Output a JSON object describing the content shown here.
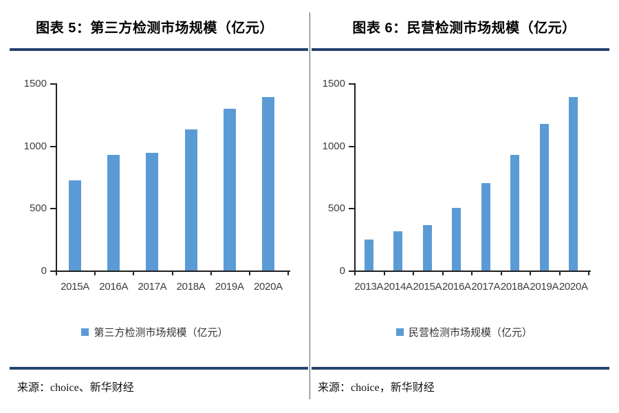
{
  "panels": [
    {
      "title": "图表 5：第三方检测市场规模（亿元）",
      "legend": "第三方检测市场规模（亿元）",
      "source": "来源：choice、新华财经"
    },
    {
      "title": "图表 6：民营检测市场规模（亿元）",
      "legend": "民营检测市场规模（亿元）",
      "source": "来源：choice，新华财经"
    }
  ],
  "chart_data": [
    {
      "type": "bar",
      "title": "图表 5：第三方检测市场规模（亿元）",
      "categories": [
        "2015A",
        "2016A",
        "2017A",
        "2018A",
        "2019A",
        "2020A"
      ],
      "values": [
        720,
        925,
        945,
        1130,
        1295,
        1390
      ],
      "ylim": [
        0,
        1500
      ],
      "yticks": [
        0,
        500,
        1000,
        1500
      ],
      "legend": "第三方检测市场规模（亿元）",
      "legend_position": "bottom",
      "grid": false,
      "bar_color": "#5B9BD5"
    },
    {
      "type": "bar",
      "title": "图表 6：民营检测市场规模（亿元）",
      "categories": [
        "2013A",
        "2014A",
        "2015A",
        "2016A",
        "2017A",
        "2018A",
        "2019A",
        "2020A"
      ],
      "values": [
        250,
        313,
        365,
        500,
        700,
        925,
        1175,
        1390
      ],
      "ylim": [
        0,
        1500
      ],
      "yticks": [
        0,
        500,
        1000,
        1500
      ],
      "legend": "民营检测市场规模（亿元）",
      "legend_position": "bottom",
      "grid": false,
      "bar_color": "#5B9BD5"
    }
  ],
  "colors": {
    "bar": "#5B9BD5",
    "rule": "#24426E",
    "divider": "#595959",
    "axis": "#1f1f1f",
    "tick_label": "#3d3d3d"
  }
}
